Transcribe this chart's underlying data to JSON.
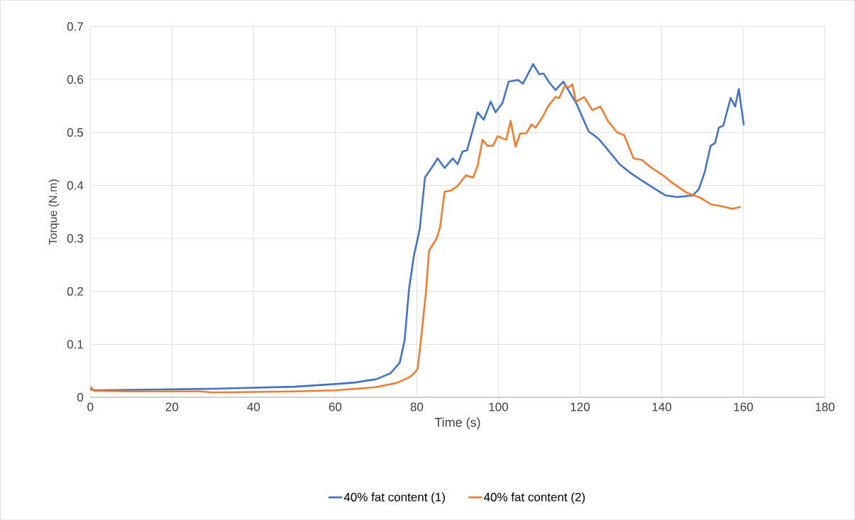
{
  "chart_data": {
    "type": "line",
    "xlabel": "Time (s)",
    "ylabel": "Torque (N.m)",
    "xlim": [
      0,
      180
    ],
    "xticks": [
      0,
      20,
      40,
      60,
      80,
      100,
      120,
      140,
      160,
      180
    ],
    "ylim": [
      0,
      0.7
    ],
    "yticks": [
      0,
      0.1,
      0.2,
      0.3,
      0.4,
      0.5,
      0.6,
      0.7
    ],
    "grid": true,
    "legend": "bottom",
    "marker": "none",
    "line_style": "solid",
    "series": [
      {
        "name": "40% fat content (1)",
        "color": "#4472c4",
        "x": [
          0,
          1,
          10,
          20,
          30,
          40,
          50,
          60,
          65,
          67.3,
          70,
          73.5,
          75.8,
          77.0,
          78.1,
          79.3,
          80.7,
          82.0,
          83.6,
          85.1,
          86.8,
          88.8,
          90.0,
          91.2,
          92.3,
          94.9,
          96.4,
          98.1,
          99.3,
          101.0,
          102.5,
          104.8,
          106.0,
          108.5,
          110.0,
          111.1,
          112.3,
          114.0,
          115.9,
          119.2,
          122.1,
          124.4,
          126.2,
          129.7,
          132.6,
          137.2,
          141.0,
          143.8,
          147.6,
          149.1,
          150.5,
          152.0,
          153.1,
          154.0,
          155.1,
          156.9,
          158.0,
          158.9,
          160.1
        ],
        "values": [
          0.015,
          0.013,
          0.014,
          0.015,
          0.016,
          0.018,
          0.02,
          0.025,
          0.028,
          0.031,
          0.034,
          0.045,
          0.065,
          0.107,
          0.205,
          0.268,
          0.317,
          0.415,
          0.433,
          0.451,
          0.433,
          0.451,
          0.44,
          0.464,
          0.466,
          0.538,
          0.524,
          0.558,
          0.538,
          0.556,
          0.596,
          0.599,
          0.592,
          0.629,
          0.61,
          0.611,
          0.596,
          0.58,
          0.596,
          0.553,
          0.502,
          0.489,
          0.473,
          0.44,
          0.422,
          0.399,
          0.381,
          0.378,
          0.381,
          0.393,
          0.424,
          0.475,
          0.48,
          0.509,
          0.513,
          0.565,
          0.549,
          0.582,
          0.515
        ]
      },
      {
        "name": "40% fat content (2)",
        "color": "#ed7d31",
        "x": [
          0,
          1,
          10,
          20,
          27,
          30,
          40,
          50,
          60,
          65,
          70,
          75,
          78,
          79.3,
          80.2,
          81.0,
          82.2,
          83.0,
          84.8,
          85.7,
          86.8,
          88.3,
          90.0,
          92.0,
          93.8,
          94.9,
          96.1,
          97.3,
          98.7,
          99.8,
          101.9,
          103.0,
          104.2,
          105.3,
          106.8,
          108.1,
          109.1,
          110.8,
          112.3,
          114.0,
          114.9,
          116.3,
          117.2,
          118.1,
          119.0,
          121.0,
          123.0,
          125.0,
          126.8,
          129.1,
          130.8,
          133.1,
          135.2,
          137.2,
          140.7,
          142.4,
          146.2,
          149.4,
          152.2,
          154.6,
          157.2,
          159.2
        ],
        "values": [
          0.02,
          0.012,
          0.011,
          0.011,
          0.011,
          0.009,
          0.01,
          0.011,
          0.013,
          0.016,
          0.019,
          0.027,
          0.037,
          0.045,
          0.054,
          0.107,
          0.196,
          0.277,
          0.299,
          0.321,
          0.388,
          0.39,
          0.399,
          0.419,
          0.415,
          0.437,
          0.486,
          0.475,
          0.475,
          0.493,
          0.486,
          0.522,
          0.473,
          0.498,
          0.498,
          0.515,
          0.509,
          0.529,
          0.551,
          0.567,
          0.565,
          0.589,
          0.585,
          0.591,
          0.558,
          0.567,
          0.542,
          0.549,
          0.522,
          0.5,
          0.495,
          0.451,
          0.448,
          0.435,
          0.417,
          0.406,
          0.386,
          0.377,
          0.364,
          0.361,
          0.356,
          0.359
        ]
      }
    ]
  }
}
